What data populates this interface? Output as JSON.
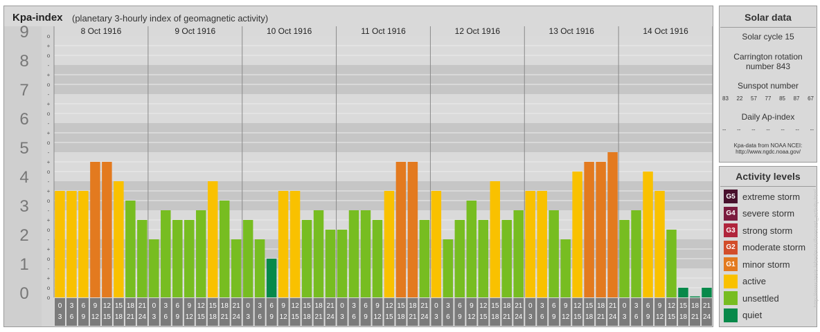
{
  "header": {
    "title": "Kpa-index",
    "subtitle": "(planetary 3-hourly index of geomagnetic activity)"
  },
  "chart_data": {
    "type": "bar",
    "title": "Kpa-index",
    "subtitle": "(planetary 3-hourly index of geomagnetic activity)",
    "ylim": [
      0,
      9
    ],
    "y_ticks": [
      "0",
      "1",
      "2",
      "3",
      "4",
      "5",
      "6",
      "7",
      "8",
      "9"
    ],
    "sub_tick_labels": [
      "-",
      "o",
      "+"
    ],
    "days": [
      "8 Oct 1916",
      "9 Oct 1916",
      "10 Oct 1916",
      "11 Oct 1916",
      "12 Oct 1916",
      "13 Oct 1916",
      "14 Oct 1916"
    ],
    "intervals": [
      [
        "0",
        "3"
      ],
      [
        "3",
        "6"
      ],
      [
        "6",
        "9"
      ],
      [
        "9",
        "12"
      ],
      [
        "12",
        "15"
      ],
      [
        "15",
        "18"
      ],
      [
        "18",
        "21"
      ],
      [
        "21",
        "24"
      ]
    ],
    "values": [
      [
        3.667,
        3.667,
        3.667,
        4.667,
        4.667,
        4.0,
        3.333,
        2.667
      ],
      [
        2.0,
        3.0,
        2.667,
        2.667,
        3.0,
        4.0,
        3.333,
        2.0
      ],
      [
        2.667,
        2.0,
        1.333,
        3.667,
        3.667,
        2.667,
        3.0,
        2.333
      ],
      [
        2.333,
        3.0,
        3.0,
        2.667,
        3.667,
        4.667,
        4.667,
        2.667
      ],
      [
        3.667,
        2.0,
        2.667,
        3.333,
        2.667,
        4.0,
        2.667,
        3.0
      ],
      [
        3.667,
        3.667,
        3.0,
        2.0,
        4.333,
        4.667,
        4.667,
        5.0
      ],
      [
        2.667,
        3.0,
        4.333,
        3.667,
        2.333,
        0.333,
        0.0,
        0.333
      ]
    ],
    "levels": [
      [
        3,
        3,
        3,
        4,
        4,
        3,
        2,
        2
      ],
      [
        2,
        2,
        2,
        2,
        2,
        3,
        2,
        2
      ],
      [
        2,
        2,
        1,
        3,
        3,
        2,
        2,
        2
      ],
      [
        2,
        2,
        2,
        2,
        3,
        4,
        4,
        2
      ],
      [
        3,
        2,
        2,
        2,
        2,
        3,
        2,
        2
      ],
      [
        3,
        3,
        2,
        2,
        3,
        4,
        4,
        4
      ],
      [
        2,
        2,
        3,
        3,
        2,
        1,
        1,
        1
      ]
    ],
    "colors": {
      "quiet": "#07894a",
      "unsettled": "#77bd21",
      "active": "#f9c100",
      "minor_storm": "#e37a1f",
      "moderate_storm": "#d24d2a",
      "strong_storm": "#b0253c",
      "severe_storm": "#7b1b3e",
      "extreme_storm": "#48112c"
    },
    "grid": true,
    "legend_position": "right"
  },
  "solar": {
    "title": "Solar data",
    "cycle": "Solar cycle 15",
    "carrington_line1": "Carrington rotation",
    "carrington_line2": "number 843",
    "sunspot_label": "Sunspot number",
    "sunspot_values": [
      "83",
      "22",
      "57",
      "77",
      "85",
      "87",
      "67"
    ],
    "ap_label": "Daily Ap-index",
    "ap_values": [
      "--",
      "--",
      "--",
      "--",
      "--",
      "--",
      "--"
    ],
    "source_line1": "Kpa-data from NOAA NCEI:",
    "source_line2": "http://www.ngdc.noaa.gov/"
  },
  "activity": {
    "title": "Activity levels",
    "items": [
      {
        "code": "G5",
        "label": "extreme storm",
        "color": "#48112c"
      },
      {
        "code": "G4",
        "label": "severe storm",
        "color": "#7b1b3e"
      },
      {
        "code": "G3",
        "label": "strong storm",
        "color": "#b0253c"
      },
      {
        "code": "G2",
        "label": "moderate storm",
        "color": "#d24d2a"
      },
      {
        "code": "G1",
        "label": "minor storm",
        "color": "#e37a1f"
      },
      {
        "code": "",
        "label": "active",
        "color": "#f9c100"
      },
      {
        "code": "",
        "label": "unsettled",
        "color": "#77bd21"
      },
      {
        "code": "",
        "label": "quiet",
        "color": "#07894a"
      }
    ]
  },
  "watermark": "http://www.tesis.lebedev.ru/forecast_activity.html"
}
